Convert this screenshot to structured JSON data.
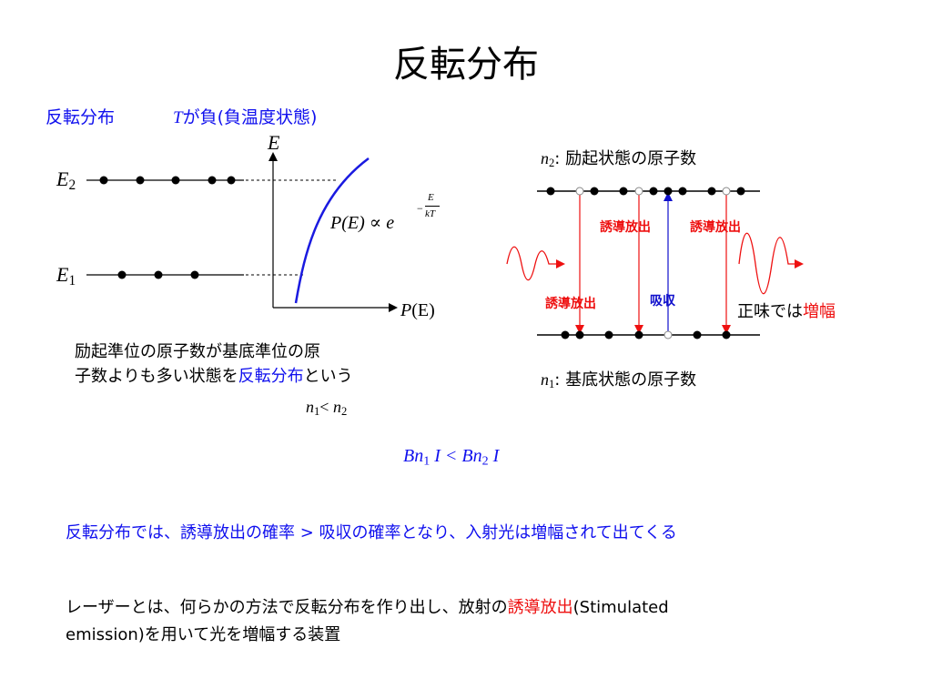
{
  "slide": {
    "title": "反転分布",
    "header_left": "反転分布",
    "header_T": "T",
    "header_right": "が負(負温度状態)"
  },
  "left_diagram": {
    "axis_y": "E",
    "axis_x_P": "P",
    "axis_x_E": "(E)",
    "level_upper_E": "E",
    "level_upper_sub": "2",
    "level_lower_E": "E",
    "level_lower_sub": "1",
    "formula_main": "P(E) ∝ e",
    "formula_minus": "−",
    "formula_num": "E",
    "formula_den": "kT",
    "description_line1": "励起準位の原子数が基底準位の原",
    "description_line2_a": "子数よりも多い状態を",
    "description_line2_b": "反転分布",
    "description_line2_c": "という",
    "inequality_n1": "n",
    "inequality_s1": "1",
    "inequality_lt": "< ",
    "inequality_n2": "n",
    "inequality_s2": "2"
  },
  "right_diagram": {
    "upper_n": "n",
    "upper_sub": "2",
    "upper_label": ": 励起状態の原子数",
    "lower_n": "n",
    "lower_sub": "1",
    "lower_label": ": 基底状態の原子数",
    "stim_label_1": "誘導放出",
    "stim_label_2": "誘導放出",
    "stim_label_3": "誘導放出",
    "absorb_label": "吸収",
    "gain_black": "正味では",
    "gain_red": "増幅",
    "colors": {
      "stim": "#ee1010",
      "absorb": "#1010cc",
      "curve": "#1a1ae0"
    }
  },
  "relation": {
    "b1": "Bn",
    "s1": "1",
    "i1": " I < Bn",
    "s2": "2",
    "i2": " I"
  },
  "conclusion": "反転分布では、誘導放出の確率 > 吸収の確率となり、入射光は増幅されて出てくる",
  "laser": {
    "part1": "レーザーとは、何らかの方法で反転分布を作り出し、放射の",
    "part2": "誘導放出",
    "part3": "(Stimulated",
    "line2": "emission)を用いて光を増幅する装置"
  }
}
